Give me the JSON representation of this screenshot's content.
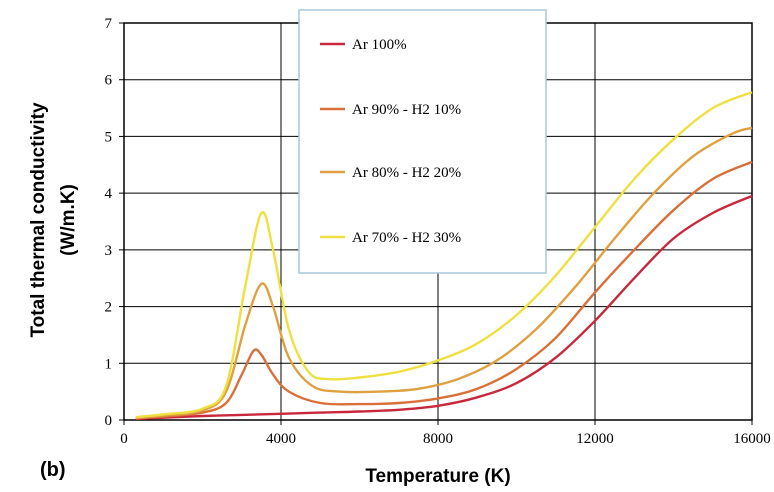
{
  "panel_label": "(b)",
  "chart_data": {
    "type": "line",
    "xlabel": "Temperature (K)",
    "ylabel": [
      "Total thermal conductivity",
      "(W/m.K)"
    ],
    "xlim": [
      0,
      16000
    ],
    "ylim": [
      0,
      7
    ],
    "x_ticks": [
      0,
      4000,
      8000,
      12000,
      16000
    ],
    "x_tick_labels": [
      "0",
      "4000",
      "8000",
      "12000",
      "16000"
    ],
    "y_ticks": [
      0,
      1,
      2,
      3,
      4,
      5,
      6,
      7
    ],
    "y_tick_labels": [
      "0",
      "1",
      "2",
      "3",
      "4",
      "5",
      "6",
      "7"
    ],
    "grid": true,
    "legend_position": "top-center",
    "series": [
      {
        "name": "Ar 100%",
        "color": "#c8283c",
        "points": [
          [
            300,
            0.02
          ],
          [
            1000,
            0.04
          ],
          [
            2000,
            0.07
          ],
          [
            3000,
            0.09
          ],
          [
            4000,
            0.11
          ],
          [
            5000,
            0.13
          ],
          [
            6000,
            0.15
          ],
          [
            7000,
            0.18
          ],
          [
            8000,
            0.25
          ],
          [
            9000,
            0.4
          ],
          [
            10000,
            0.65
          ],
          [
            11000,
            1.1
          ],
          [
            12000,
            1.75
          ],
          [
            13000,
            2.5
          ],
          [
            14000,
            3.2
          ],
          [
            15000,
            3.65
          ],
          [
            16000,
            3.95
          ]
        ]
      },
      {
        "name": "Ar 90% - H2 10%",
        "color": "#d9703a",
        "points": [
          [
            300,
            0.03
          ],
          [
            1000,
            0.06
          ],
          [
            2000,
            0.13
          ],
          [
            2600,
            0.3
          ],
          [
            3000,
            0.8
          ],
          [
            3300,
            1.22
          ],
          [
            3500,
            1.15
          ],
          [
            3800,
            0.8
          ],
          [
            4200,
            0.5
          ],
          [
            5000,
            0.3
          ],
          [
            6000,
            0.28
          ],
          [
            7000,
            0.3
          ],
          [
            8000,
            0.38
          ],
          [
            9000,
            0.55
          ],
          [
            10000,
            0.9
          ],
          [
            11000,
            1.45
          ],
          [
            12000,
            2.25
          ],
          [
            13000,
            3.0
          ],
          [
            14000,
            3.7
          ],
          [
            15000,
            4.25
          ],
          [
            16000,
            4.55
          ]
        ]
      },
      {
        "name": "Ar 80% - H2 20%",
        "color": "#dfa040",
        "points": [
          [
            300,
            0.04
          ],
          [
            1000,
            0.08
          ],
          [
            2000,
            0.17
          ],
          [
            2600,
            0.5
          ],
          [
            3100,
            1.7
          ],
          [
            3500,
            2.4
          ],
          [
            3800,
            2.0
          ],
          [
            4200,
            1.1
          ],
          [
            4800,
            0.6
          ],
          [
            5500,
            0.5
          ],
          [
            6500,
            0.5
          ],
          [
            7500,
            0.55
          ],
          [
            8500,
            0.72
          ],
          [
            9500,
            1.05
          ],
          [
            10500,
            1.6
          ],
          [
            11500,
            2.35
          ],
          [
            12500,
            3.2
          ],
          [
            13500,
            4.0
          ],
          [
            14500,
            4.65
          ],
          [
            15500,
            5.05
          ],
          [
            16000,
            5.15
          ]
        ]
      },
      {
        "name": "Ar 70% - H2 30%",
        "color": "#efe040",
        "points": [
          [
            300,
            0.05
          ],
          [
            1000,
            0.1
          ],
          [
            2000,
            0.2
          ],
          [
            2600,
            0.6
          ],
          [
            3100,
            2.4
          ],
          [
            3500,
            3.65
          ],
          [
            3800,
            3.0
          ],
          [
            4200,
            1.6
          ],
          [
            4700,
            0.85
          ],
          [
            5200,
            0.72
          ],
          [
            6000,
            0.75
          ],
          [
            7000,
            0.85
          ],
          [
            8000,
            1.05
          ],
          [
            9000,
            1.35
          ],
          [
            10000,
            1.85
          ],
          [
            11000,
            2.55
          ],
          [
            12000,
            3.4
          ],
          [
            13000,
            4.25
          ],
          [
            14000,
            4.95
          ],
          [
            15000,
            5.5
          ],
          [
            16000,
            5.78
          ]
        ]
      }
    ]
  }
}
